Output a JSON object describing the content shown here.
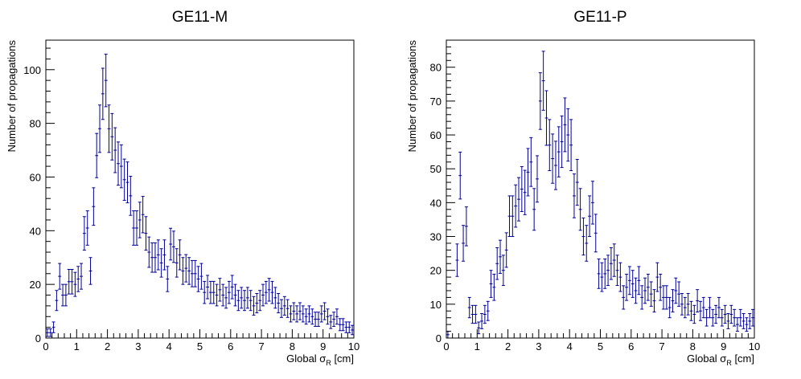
{
  "chart_data": [
    {
      "type": "histogram",
      "title": "GE11-M",
      "xlabel_main": "Global σ",
      "xlabel_sub": "R",
      "xlabel_unit": "[cm]",
      "ylabel": "Number of propagations",
      "xlim": [
        0,
        10
      ],
      "ylim": [
        0,
        111
      ],
      "x_ticks": [
        0,
        1,
        2,
        3,
        4,
        5,
        6,
        7,
        8,
        9,
        10
      ],
      "y_ticks": [
        0,
        20,
        40,
        60,
        80,
        100
      ],
      "grid": false,
      "bin_width": 0.1,
      "color": "#000099",
      "values": [
        2,
        2,
        4,
        14,
        23,
        16,
        16,
        21,
        21,
        20,
        22,
        23,
        39,
        41,
        25,
        49,
        68,
        78,
        91,
        96,
        78,
        75,
        70,
        65,
        64,
        59,
        58,
        53,
        41,
        41,
        44,
        46,
        39,
        32,
        30,
        30,
        31,
        28,
        31,
        22,
        35,
        34,
        28,
        31,
        25,
        26,
        25,
        24,
        24,
        22,
        23,
        17,
        19,
        17,
        17,
        16,
        18,
        16,
        15,
        17,
        19,
        16,
        14,
        15,
        14,
        15,
        14,
        12,
        13,
        14,
        16,
        17,
        18,
        17,
        15,
        13,
        11,
        12,
        11,
        9,
        10,
        9,
        10,
        9,
        8,
        9,
        8,
        7,
        7,
        9,
        10,
        8,
        6,
        7,
        8,
        5,
        5,
        4,
        4,
        3
      ]
    },
    {
      "type": "histogram",
      "title": "GE11-P",
      "xlabel_main": "Global σ",
      "xlabel_sub": "R",
      "xlabel_unit": "[cm]",
      "ylabel": "Number of propagations",
      "xlim": [
        0,
        10
      ],
      "ylim": [
        0,
        88
      ],
      "x_ticks": [
        0,
        1,
        2,
        3,
        4,
        5,
        6,
        7,
        8,
        9,
        10
      ],
      "y_ticks": [
        0,
        10,
        20,
        30,
        40,
        50,
        60,
        70,
        80
      ],
      "grid": false,
      "bin_width": 0.1,
      "color": "#000099",
      "values": [
        1,
        0,
        0,
        23,
        48,
        28,
        33,
        9,
        7,
        7,
        3,
        5,
        7,
        8,
        16,
        15,
        22,
        24,
        20,
        26,
        36,
        36,
        39,
        41,
        44,
        43,
        49,
        52,
        38,
        47,
        70,
        76,
        65,
        57,
        53,
        51,
        55,
        58,
        63,
        60,
        57,
        42,
        46,
        38,
        30,
        28,
        36,
        40,
        31,
        19,
        18,
        19,
        20,
        22,
        23,
        20,
        18,
        12,
        15,
        17,
        16,
        14,
        17,
        12,
        14,
        15,
        13,
        11,
        18,
        15,
        12,
        12,
        9,
        11,
        14,
        13,
        10,
        9,
        10,
        8,
        7,
        11,
        8,
        9,
        6,
        9,
        6,
        7,
        9,
        6,
        7,
        5,
        7,
        6,
        4,
        6,
        5,
        4,
        5,
        6
      ]
    }
  ]
}
